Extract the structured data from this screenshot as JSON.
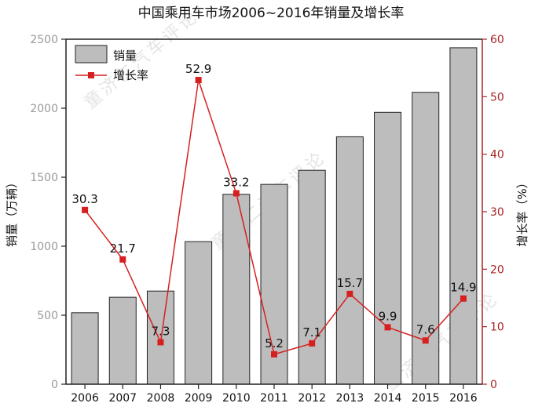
{
  "chart_data": {
    "type": "bar+line",
    "title": "中国乘用车市场2006~2016年销量及增长率",
    "categories": [
      "2006",
      "2007",
      "2008",
      "2009",
      "2010",
      "2011",
      "2012",
      "2013",
      "2014",
      "2015",
      "2016"
    ],
    "series": [
      {
        "name": "销量",
        "type": "bar",
        "axis": "left",
        "values": [
          518,
          630,
          675,
          1033,
          1376,
          1448,
          1550,
          1793,
          1970,
          2115,
          2438
        ]
      },
      {
        "name": "增长率",
        "type": "line",
        "axis": "right",
        "values": [
          30.3,
          21.7,
          7.3,
          52.9,
          33.2,
          5.2,
          7.1,
          15.7,
          9.9,
          7.6,
          14.9
        ],
        "labels": [
          "30.3",
          "21.7",
          "7.3",
          "52.9",
          "33.2",
          "5.2",
          "7.1",
          "15.7",
          "9.9",
          "7.6",
          "14.9"
        ]
      }
    ],
    "ylabel": "销量（万辆）",
    "ylabel_right": "增长率（%）",
    "ylim": [
      0,
      2500
    ],
    "ylim_right": [
      0,
      60
    ],
    "yticks": [
      0,
      500,
      1000,
      1500,
      2000,
      2500
    ],
    "yticks_right": [
      0,
      10,
      20,
      30,
      40,
      50,
      60
    ],
    "legend": [
      "销量",
      "增长率"
    ],
    "legend_position": "top-left",
    "colors": {
      "bar_fill": "#bdbdbd",
      "bar_stroke": "#222222",
      "line": "#d62020",
      "right_axis": "#a82424"
    }
  },
  "watermark": {
    "text": "童济仁汽车评论",
    "sub": "TongJiRen"
  }
}
